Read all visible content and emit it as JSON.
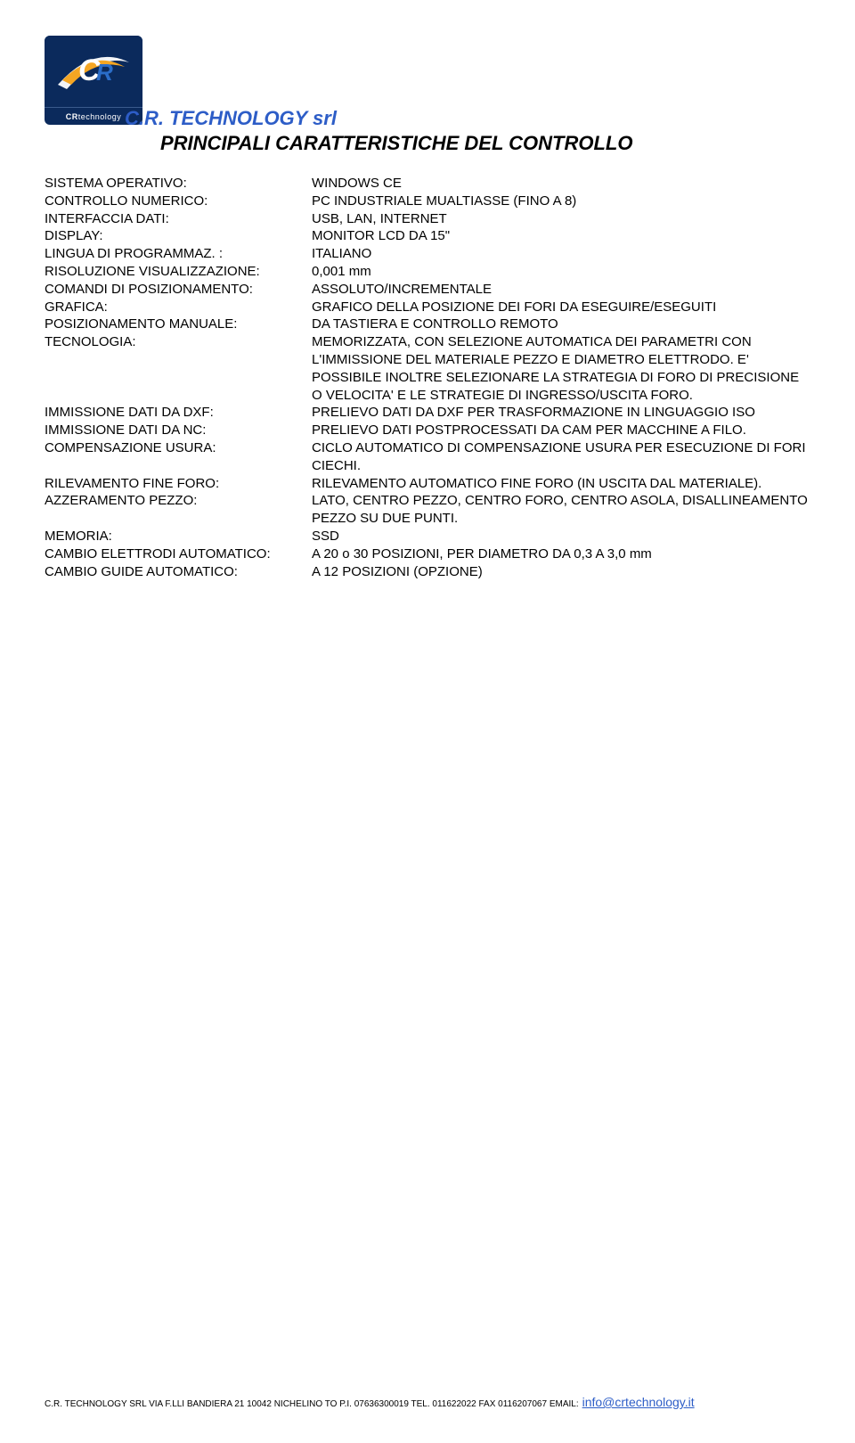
{
  "logo": {
    "brand_prefix": "CR",
    "brand_suffix": "technology",
    "bg_color": "#0b2a5c",
    "swoosh1": "#2a6dc9",
    "swoosh2": "#f5a623",
    "swoosh3": "#ffffff"
  },
  "company": "C.R. TECHNOLOGY srl",
  "title": "PRINCIPALI CARATTERISTICHE DEL CONTROLLO",
  "rows": [
    {
      "label": "SISTEMA OPERATIVO:",
      "value": "WINDOWS CE"
    },
    {
      "label": "CONTROLLO NUMERICO:",
      "value": "PC INDUSTRIALE MUALTIASSE (FINO A 8)"
    },
    {
      "label": "INTERFACCIA DATI:",
      "value": "USB, LAN, INTERNET"
    },
    {
      "label": "DISPLAY:",
      "value": "MONITOR LCD DA 15\""
    },
    {
      "label": "LINGUA DI PROGRAMMAZ. :",
      "value": "ITALIANO"
    },
    {
      "label": "RISOLUZIONE VISUALIZZAZIONE:",
      "value": "0,001 mm"
    },
    {
      "label": "COMANDI DI POSIZIONAMENTO:",
      "value": "ASSOLUTO/INCREMENTALE"
    },
    {
      "label": "GRAFICA:",
      "value": "GRAFICO DELLA POSIZIONE DEI FORI DA ESEGUIRE/ESEGUITI"
    },
    {
      "label": "POSIZIONAMENTO MANUALE:",
      "value": "DA TASTIERA E CONTROLLO REMOTO"
    },
    {
      "label": "TECNOLOGIA:",
      "value": "MEMORIZZATA, CON SELEZIONE AUTOMATICA DEI PARAMETRI CON L'IMMISSIONE DEL MATERIALE PEZZO E DIAMETRO ELETTRODO. E' POSSIBILE INOLTRE SELEZIONARE LA STRATEGIA DI FORO DI PRECISIONE O VELOCITA' E LE STRATEGIE DI INGRESSO/USCITA FORO."
    },
    {
      "label": "IMMISSIONE DATI DA DXF:",
      "value": "PRELIEVO DATI DA DXF PER TRASFORMAZIONE IN LINGUAGGIO ISO"
    },
    {
      "label": "IMMISSIONE DATI DA NC:",
      "value": "PRELIEVO DATI POSTPROCESSATI DA CAM PER MACCHINE A FILO."
    },
    {
      "label": "COMPENSAZIONE USURA:",
      "value": "CICLO AUTOMATICO DI COMPENSAZIONE USURA PER ESECUZIONE DI FORI CIECHI."
    },
    {
      "label": "RILEVAMENTO FINE FORO:",
      "value": "RILEVAMENTO AUTOMATICO FINE FORO (IN USCITA DAL MATERIALE)."
    },
    {
      "label": "AZZERAMENTO PEZZO:",
      "value": "LATO, CENTRO PEZZO, CENTRO FORO, CENTRO ASOLA, DISALLINEAMENTO PEZZO SU DUE PUNTI."
    },
    {
      "label": "MEMORIA:",
      "value": "SSD"
    },
    {
      "label": "CAMBIO ELETTRODI AUTOMATICO:",
      "value": "A 20 o 30 POSIZIONI, PER DIAMETRO DA 0,3 A 3,0 mm"
    },
    {
      "label": "CAMBIO GUIDE AUTOMATICO:",
      "value": "A 12 POSIZIONI (OPZIONE)"
    }
  ],
  "footer": {
    "text": "C.R. TECHNOLOGY SRL VIA F.LLI BANDIERA 21 10042 NICHELINO TO P.I. 07636300019 TEL. 011622022 FAX 0116207067 EMAIL:",
    "link": "info@crtechnology.it"
  }
}
